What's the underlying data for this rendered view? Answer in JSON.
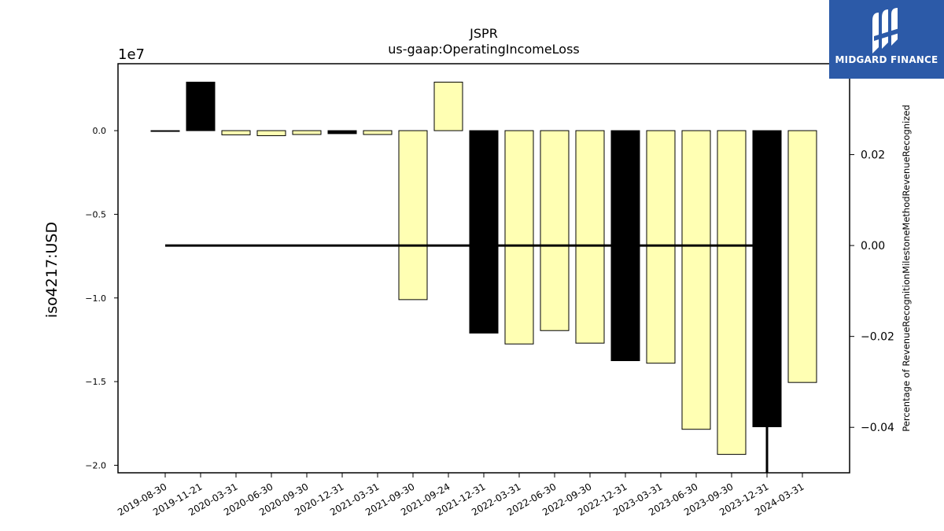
{
  "chart_data": {
    "type": "bar",
    "title": "JSPR",
    "subtitle": "us-gaap:OperatingIncomeLoss",
    "ylabel": "iso4217:USD",
    "y_offset_label": "1e7",
    "y2label": "Percentage of RevenueRecognitionMilestoneMethodRevenueRecognized",
    "categories": [
      "2019-08-30",
      "2019-11-21",
      "2020-03-31",
      "2020-06-30",
      "2020-09-30",
      "2020-12-31",
      "2021-03-31",
      "2021-09-30",
      "2021-09-24",
      "2021-12-31",
      "2022-03-31",
      "2022-06-30",
      "2022-09-30",
      "2022-12-31",
      "2023-03-31",
      "2023-06-30",
      "2023-09-30",
      "2023-12-31",
      "2024-03-31"
    ],
    "values": [
      -10000,
      2900000,
      -250000,
      -300000,
      -230000,
      -180000,
      -230000,
      -10100000,
      2900000,
      -12100000,
      -12750000,
      -11950000,
      -12700000,
      -13750000,
      -13900000,
      -17850000,
      -19350000,
      -17700000,
      -15050000
    ],
    "bar_colors": [
      "#ffffb3",
      "#000000",
      "#ffffb3",
      "#ffffb3",
      "#ffffb3",
      "#000000",
      "#ffffb3",
      "#ffffb3",
      "#ffffb3",
      "#000000",
      "#ffffb3",
      "#ffffb3",
      "#ffffb3",
      "#000000",
      "#ffffb3",
      "#ffffb3",
      "#ffffb3",
      "#000000",
      "#ffffb3"
    ],
    "ylim": [
      -20450000,
      4000000
    ],
    "yticks": [
      0,
      -5000000,
      -10000000,
      -15000000,
      -20000000
    ],
    "ytick_labels": [
      "0.0",
      "−0.5",
      "−1.0",
      "−1.5",
      "−2.0"
    ],
    "y2lim": [
      -0.05,
      0.04
    ],
    "y2ticks": [
      0.04,
      0.02,
      0.0,
      -0.02,
      -0.04
    ],
    "y2tick_labels": [
      "0.04",
      "0.02",
      "0.00",
      "−0.02",
      "−0.04"
    ],
    "line_series": {
      "x_start": "2019-08-30",
      "x_end": "2023-12-31",
      "value": 0.0
    },
    "drop_line": {
      "category": "2023-12-31",
      "from_value": -17700000,
      "to_value": -20450000
    },
    "grid": false
  },
  "logo": {
    "text": "MIDGARD FINANCE"
  }
}
